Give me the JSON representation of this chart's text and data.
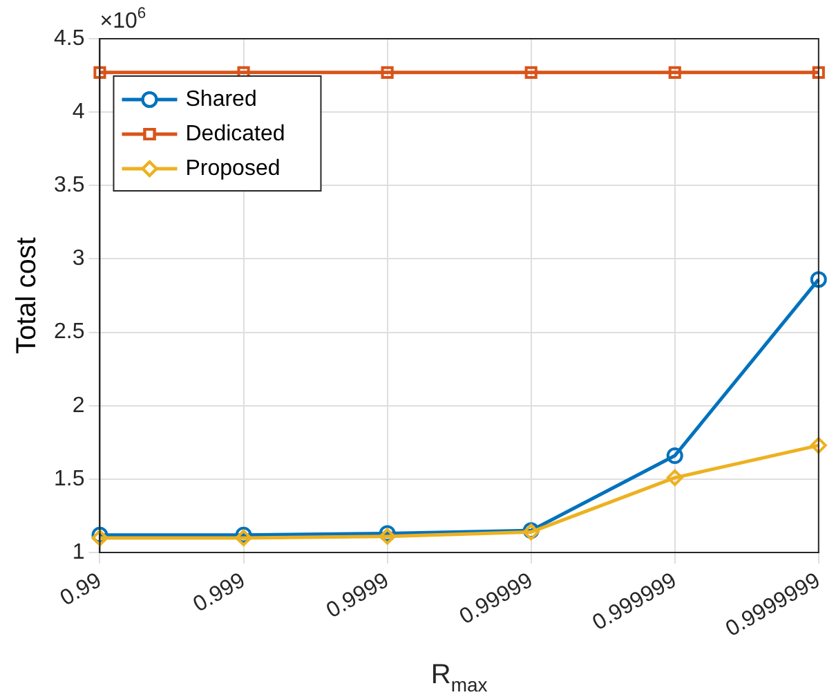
{
  "chart_data": {
    "type": "line",
    "xlabel": "R$_{max}$",
    "ylabel": "Total cost",
    "categories": [
      "0.99",
      "0.999",
      "0.9999",
      "0.99999",
      "0.999999",
      "0.9999999"
    ],
    "series": [
      {
        "name": "Shared",
        "color": "#0072bd",
        "marker": "circle",
        "values": [
          1.12,
          1.12,
          1.13,
          1.15,
          1.66,
          2.86
        ]
      },
      {
        "name": "Dedicated",
        "color": "#d95319",
        "marker": "square",
        "values": [
          4.27,
          4.27,
          4.27,
          4.27,
          4.27,
          4.27
        ]
      },
      {
        "name": "Proposed",
        "color": "#edb120",
        "marker": "diamond",
        "values": [
          1.1,
          1.1,
          1.11,
          1.14,
          1.51,
          1.73
        ]
      }
    ],
    "ylim": [
      1,
      4.5
    ],
    "yticks": [
      1,
      1.5,
      2,
      2.5,
      3,
      3.5,
      4,
      4.5
    ],
    "annotations": [
      "×10$^{6}$"
    ],
    "grid": true,
    "legend": "top left"
  }
}
